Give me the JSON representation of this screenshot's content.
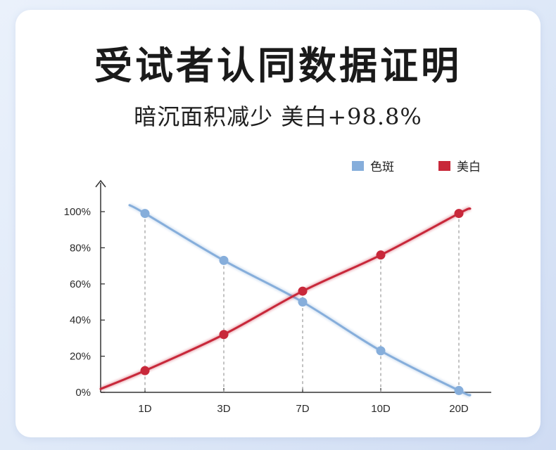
{
  "header": {
    "title": "受试者认同数据证明",
    "subtitle": "暗沉面积减少 美白+98.8%"
  },
  "chart_data": {
    "type": "line",
    "categories": [
      "1D",
      "3D",
      "7D",
      "10D",
      "20D"
    ],
    "y_ticks": [
      "0%",
      "20%",
      "40%",
      "60%",
      "80%",
      "100%"
    ],
    "ylim": [
      0,
      100
    ],
    "grid": false,
    "legend_position": "top-right",
    "series": [
      {
        "name": "色斑",
        "color": "#86aedb",
        "values": [
          99,
          73,
          50,
          23,
          1
        ]
      },
      {
        "name": "美白",
        "color": "#c8283a",
        "values": [
          12,
          32,
          56,
          76,
          99
        ]
      }
    ]
  }
}
